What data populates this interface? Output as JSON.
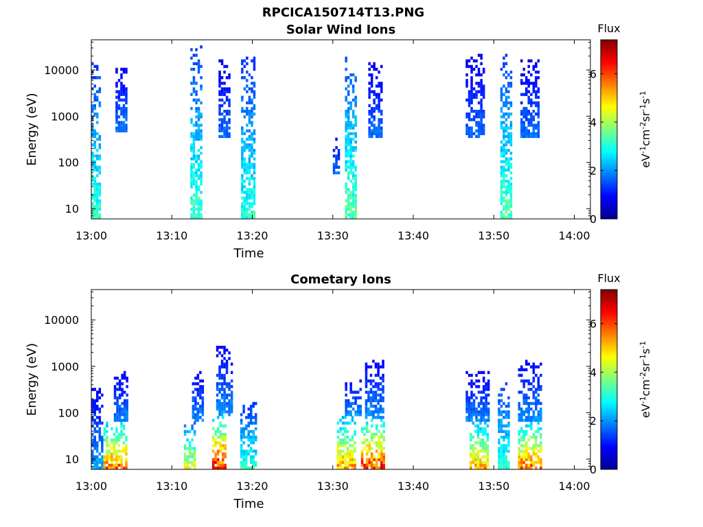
{
  "figure_title": "RPCICA150714T13.PNG",
  "colorbar_title": "Flux",
  "colorbar_ticks": [
    "0",
    "2",
    "4",
    "6"
  ],
  "colorbar_range": [
    0,
    7.4
  ],
  "colorbar_colormap": "jet",
  "chart_data": [
    {
      "type": "heatmap",
      "title": "Solar Wind Ions",
      "xlabel": "Time",
      "ylabel": "Energy (eV)",
      "x_ticks": [
        "13:00",
        "13:10",
        "13:20",
        "13:30",
        "13:40",
        "13:50",
        "14:00"
      ],
      "x_range": [
        "13:00",
        "14:02"
      ],
      "y_scale": "log",
      "y_ticks": [
        "10",
        "100",
        "1000",
        "10000"
      ],
      "y_range": [
        6,
        45000
      ],
      "colorbar_label": "eV^-1 cm^-2 sr^-1 s^-1",
      "clusters": [
        {
          "time_min": 0.0,
          "time_max": 1.3,
          "emin": 6,
          "emax": 15000,
          "peak_flux": 3.6
        },
        {
          "time_min": 3.0,
          "time_max": 4.4,
          "emin": 400,
          "emax": 10000,
          "peak_flux": 2.1
        },
        {
          "time_min": 12.3,
          "time_max": 13.8,
          "emin": 6,
          "emax": 30000,
          "peak_flux": 3.7
        },
        {
          "time_min": 15.8,
          "time_max": 17.2,
          "emin": 300,
          "emax": 15000,
          "peak_flux": 2.0
        },
        {
          "time_min": 18.6,
          "time_max": 20.5,
          "emin": 6,
          "emax": 18000,
          "peak_flux": 3.5
        },
        {
          "time_min": 30.0,
          "time_max": 31.0,
          "emin": 50,
          "emax": 400,
          "peak_flux": 2.0
        },
        {
          "time_min": 31.5,
          "time_max": 33.0,
          "emin": 6,
          "emax": 18000,
          "peak_flux": 3.9
        },
        {
          "time_min": 34.4,
          "time_max": 36.3,
          "emin": 300,
          "emax": 13000,
          "peak_flux": 2.0
        },
        {
          "time_min": 46.5,
          "time_max": 49.0,
          "emin": 300,
          "emax": 20000,
          "peak_flux": 1.9
        },
        {
          "time_min": 50.8,
          "time_max": 52.4,
          "emin": 6,
          "emax": 20000,
          "peak_flux": 3.8
        },
        {
          "time_min": 53.3,
          "time_max": 55.6,
          "emin": 300,
          "emax": 16000,
          "peak_flux": 2.0
        }
      ]
    },
    {
      "type": "heatmap",
      "title": "Cometary Ions",
      "xlabel": "Time",
      "ylabel": "Energy (eV)",
      "x_ticks": [
        "13:00",
        "13:10",
        "13:20",
        "13:30",
        "13:40",
        "13:50",
        "14:00"
      ],
      "x_range": [
        "13:00",
        "14:02"
      ],
      "y_scale": "log",
      "y_ticks": [
        "10",
        "100",
        "1000",
        "10000"
      ],
      "y_range": [
        6,
        45000
      ],
      "colorbar_label": "eV^-1 cm^-2 sr^-1 s^-1",
      "clusters": [
        {
          "time_min": 0.0,
          "time_max": 1.5,
          "emin": 6,
          "emax": 300,
          "peak_flux": 2.4
        },
        {
          "time_min": 1.5,
          "time_max": 4.5,
          "emin": 6,
          "emax": 60,
          "peak_flux": 6.5
        },
        {
          "time_min": 2.8,
          "time_max": 4.5,
          "emin": 60,
          "emax": 700,
          "peak_flux": 2.2
        },
        {
          "time_min": 11.5,
          "time_max": 13.0,
          "emin": 6,
          "emax": 60,
          "peak_flux": 5.0
        },
        {
          "time_min": 12.5,
          "time_max": 14.0,
          "emin": 60,
          "emax": 800,
          "peak_flux": 2.2
        },
        {
          "time_min": 15.0,
          "time_max": 16.8,
          "emin": 6,
          "emax": 80,
          "peak_flux": 7.2
        },
        {
          "time_min": 15.5,
          "time_max": 17.5,
          "emin": 80,
          "emax": 2500,
          "peak_flux": 2.3
        },
        {
          "time_min": 18.5,
          "time_max": 20.5,
          "emin": 6,
          "emax": 150,
          "peak_flux": 3.5
        },
        {
          "time_min": 30.5,
          "time_max": 33.0,
          "emin": 6,
          "emax": 80,
          "peak_flux": 6.0
        },
        {
          "time_min": 31.5,
          "time_max": 33.5,
          "emin": 80,
          "emax": 500,
          "peak_flux": 2.3
        },
        {
          "time_min": 33.5,
          "time_max": 36.5,
          "emin": 6,
          "emax": 70,
          "peak_flux": 7.0
        },
        {
          "time_min": 34.0,
          "time_max": 36.5,
          "emin": 70,
          "emax": 1200,
          "peak_flux": 2.3
        },
        {
          "time_min": 47.0,
          "time_max": 49.5,
          "emin": 6,
          "emax": 60,
          "peak_flux": 6.0
        },
        {
          "time_min": 46.5,
          "time_max": 49.5,
          "emin": 60,
          "emax": 700,
          "peak_flux": 2.2
        },
        {
          "time_min": 50.5,
          "time_max": 52.0,
          "emin": 6,
          "emax": 400,
          "peak_flux": 3.5
        },
        {
          "time_min": 53.0,
          "time_max": 56.0,
          "emin": 6,
          "emax": 60,
          "peak_flux": 6.5
        },
        {
          "time_min": 53.0,
          "time_max": 56.0,
          "emin": 60,
          "emax": 1200,
          "peak_flux": 2.3
        }
      ]
    }
  ]
}
